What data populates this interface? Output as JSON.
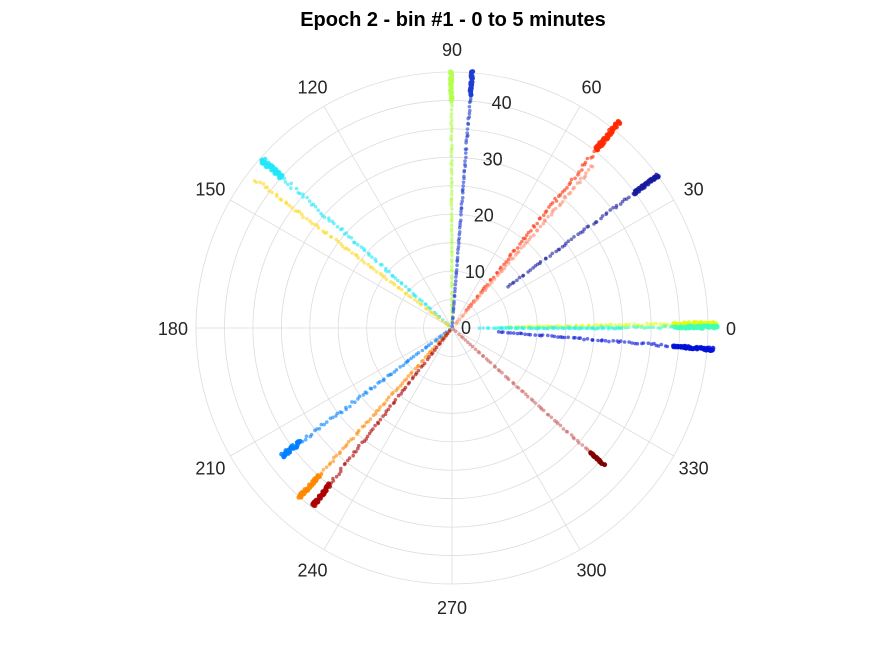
{
  "chart_data": {
    "type": "scatter",
    "projection": "polar",
    "title": "Epoch 2 - bin #1 - 0 to 5 minutes",
    "angular_axis": {
      "unit": "degrees",
      "zero_direction": "east",
      "direction": "counterclockwise",
      "ticks": [
        "0",
        "30",
        "60",
        "90",
        "120",
        "150",
        "180",
        "210",
        "240",
        "270",
        "300",
        "330"
      ]
    },
    "radial_axis": {
      "range": [
        0,
        45
      ],
      "ticks": [
        "0",
        "10",
        "20",
        "30",
        "40"
      ],
      "tick_label_angle_deg": 81
    },
    "grid": true,
    "colormap": "jet",
    "series": [
      {
        "color": "#b4ff4f",
        "theta_deg": 90.2,
        "r": [
          1.0,
          45.5
        ],
        "dense_from": 40,
        "jitter": 0.2
      },
      {
        "color": "#1e3ccf",
        "theta_deg": 85.5,
        "r": [
          0.5,
          45.2
        ],
        "dense_from": 41,
        "jitter": 0.2
      },
      {
        "color": "#ff2a00",
        "theta_deg": 51.0,
        "r": [
          4.0,
          46.5
        ],
        "dense_from": 40,
        "jitter": 0.5
      },
      {
        "color": "#ff8a70",
        "theta_deg": 49.0,
        "r": [
          1.0,
          38.0
        ],
        "dense_from": 99,
        "jitter": 0.4
      },
      {
        "color": "#1a1aa0",
        "theta_deg": 36.5,
        "r": [
          12.0,
          45.5
        ],
        "dense_from": 40,
        "jitter": 0.3
      },
      {
        "color": "#e0ff10",
        "theta_deg": 1.0,
        "r": [
          10.0,
          46.5
        ],
        "dense_from": 39,
        "jitter": 0.3
      },
      {
        "color": "#40ffb8",
        "theta_deg": 0.2,
        "r": [
          8.0,
          46.5
        ],
        "dense_from": 39,
        "jitter": 0.3
      },
      {
        "color": "#28f0f0",
        "theta_deg": -0.2,
        "r": [
          5.0,
          30.0
        ],
        "dense_from": 99,
        "jitter": 0.2
      },
      {
        "color": "#0010d8",
        "theta_deg": -4.7,
        "r": [
          8.0,
          46.0
        ],
        "dense_from": 39,
        "jitter": 0.3
      },
      {
        "color": "#cc6666",
        "theta_deg": -42.0,
        "r": [
          0.5,
          36.0
        ],
        "dense_from": 99,
        "jitter": 0.2
      },
      {
        "color": "#800000",
        "theta_deg": -42.0,
        "r": [
          33.0,
          36.2
        ],
        "dense_from": 33,
        "jitter": 0.2
      },
      {
        "color": "#20e8f8",
        "theta_deg": 138.5,
        "r": [
          0.5,
          44.5
        ],
        "dense_from": 40,
        "jitter": 0.6
      },
      {
        "color": "#ffd820",
        "theta_deg": 143.0,
        "r": [
          0.5,
          43.5
        ],
        "dense_from": 99,
        "jitter": 0.4
      },
      {
        "color": "#0080ff",
        "theta_deg": 217.0,
        "r": [
          0.5,
          37.5
        ],
        "dense_from": 33,
        "jitter": 0.6
      },
      {
        "color": "#ff8800",
        "theta_deg": 228.0,
        "r": [
          0.5,
          40.5
        ],
        "dense_from": 35,
        "jitter": 0.4
      },
      {
        "color": "#aa0000",
        "theta_deg": 232.0,
        "r": [
          0.5,
          40.0
        ],
        "dense_from": 35,
        "jitter": 0.4
      }
    ]
  }
}
